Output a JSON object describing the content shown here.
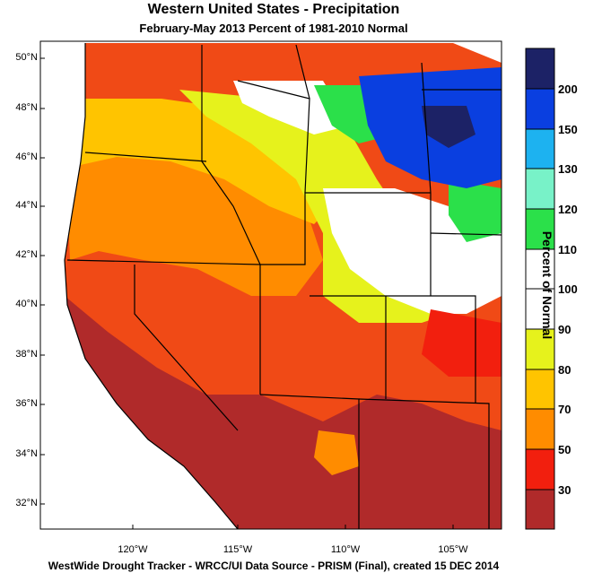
{
  "title": "Western United States - Precipitation",
  "subtitle": "February-May 2013  Percent of 1981-2010 Normal",
  "footer": "WestWide Drought Tracker - WRCC/UI  Data Source - PRISM (Final), created 15 DEC 2014",
  "latitude_labels": [
    "50°N",
    "48°N",
    "46°N",
    "44°N",
    "42°N",
    "40°N",
    "38°N",
    "36°N",
    "34°N",
    "32°N"
  ],
  "longitude_labels": [
    "120°W",
    "115°W",
    "110°W",
    "105°W"
  ],
  "colorbar": {
    "title": "Percent of Normal",
    "labels": [
      "200",
      "150",
      "130",
      "120",
      "110",
      "100",
      "90",
      "80",
      "70",
      "50",
      "30"
    ],
    "colors": [
      "#1c2266",
      "#0a3fe0",
      "#1db2f0",
      "#78f2c8",
      "#2be04a",
      "#ffffff",
      "#ffffff",
      "#e6f21c",
      "#ffc400",
      "#ff8c00",
      "#f21f0e",
      "#b02a2a"
    ]
  }
}
